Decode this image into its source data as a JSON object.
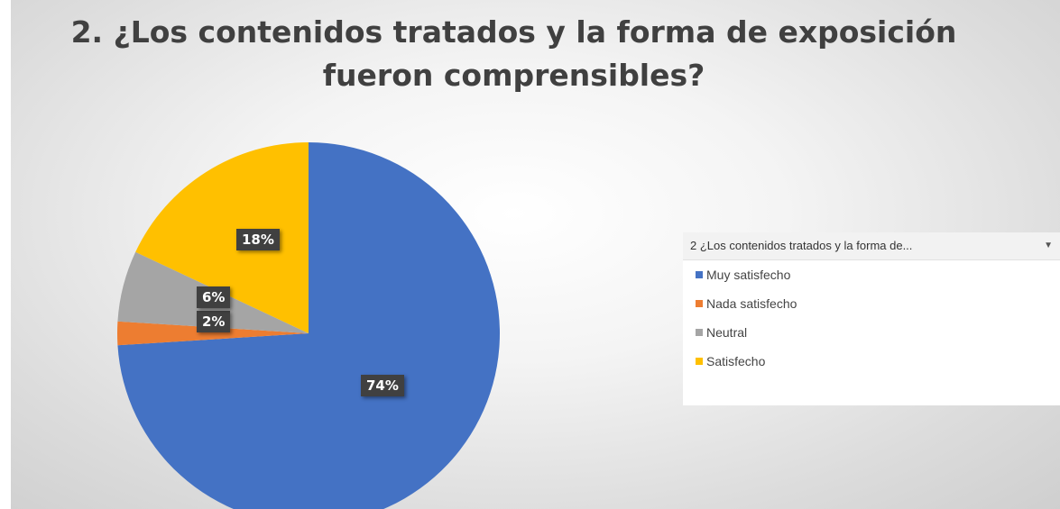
{
  "chart_data": {
    "type": "pie",
    "title": "2. ¿Los contenidos tratados y la forma de exposición fueron comprensibles?",
    "legend_placement": "right",
    "legend_header": "2 ¿Los contenidos tratados y la forma de...",
    "slices": [
      {
        "name": "Muy satisfecho",
        "value": 74,
        "label": "74%",
        "color": "#4472C4"
      },
      {
        "name": "Nada satisfecho",
        "value": 2,
        "label": "2%",
        "color": "#ED7D31"
      },
      {
        "name": "Neutral",
        "value": 6,
        "label": "6%",
        "color": "#A5A5A5"
      },
      {
        "name": "Satisfecho",
        "value": 18,
        "label": "18%",
        "color": "#FFC000"
      }
    ]
  },
  "legend": {
    "header": "2 ¿Los contenidos tratados y la forma de...",
    "dropdown_icon": "chevron-down-icon",
    "items": [
      {
        "label": "Muy satisfecho",
        "color": "#4472C4"
      },
      {
        "label": "Nada satisfecho",
        "color": "#ED7D31"
      },
      {
        "label": "Neutral",
        "color": "#A5A5A5"
      },
      {
        "label": "Satisfecho",
        "color": "#FFC000"
      }
    ]
  }
}
